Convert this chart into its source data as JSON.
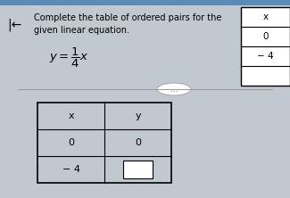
{
  "title_line1": "Complete the table of ordered pairs for the",
  "title_line2": "given linear equation.",
  "equation_text": "$y = \\dfrac{1}{4}x$",
  "bg_color": "#c2c8d0",
  "back_arrow": "|←",
  "ellipsis": "...",
  "table_rows": [
    [
      "x",
      "y"
    ],
    [
      "0",
      "0"
    ],
    [
      "− 4",
      ""
    ]
  ],
  "right_table_rows": [
    "x",
    "0",
    "− 4"
  ],
  "title_top_bar_color": "#5a8ab5"
}
